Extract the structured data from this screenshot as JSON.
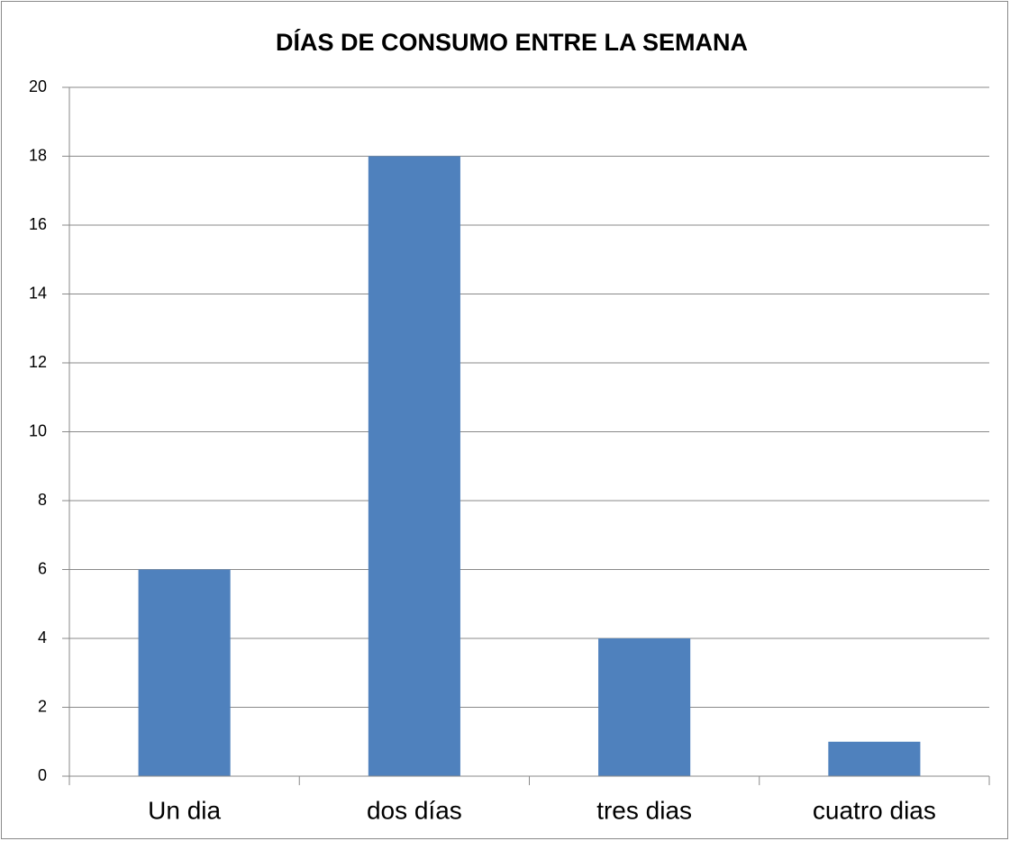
{
  "chart_data": {
    "type": "bar",
    "title": "DÍAS DE CONSUMO ENTRE LA SEMANA",
    "categories": [
      "Un dia",
      "dos días",
      "tres dias",
      "cuatro dias"
    ],
    "values": [
      6,
      18,
      4,
      1
    ],
    "color": "#4f81bd",
    "ylim": [
      0,
      20
    ],
    "yticks": [
      0,
      2,
      4,
      6,
      8,
      10,
      12,
      14,
      16,
      18,
      20
    ],
    "grid": true
  }
}
